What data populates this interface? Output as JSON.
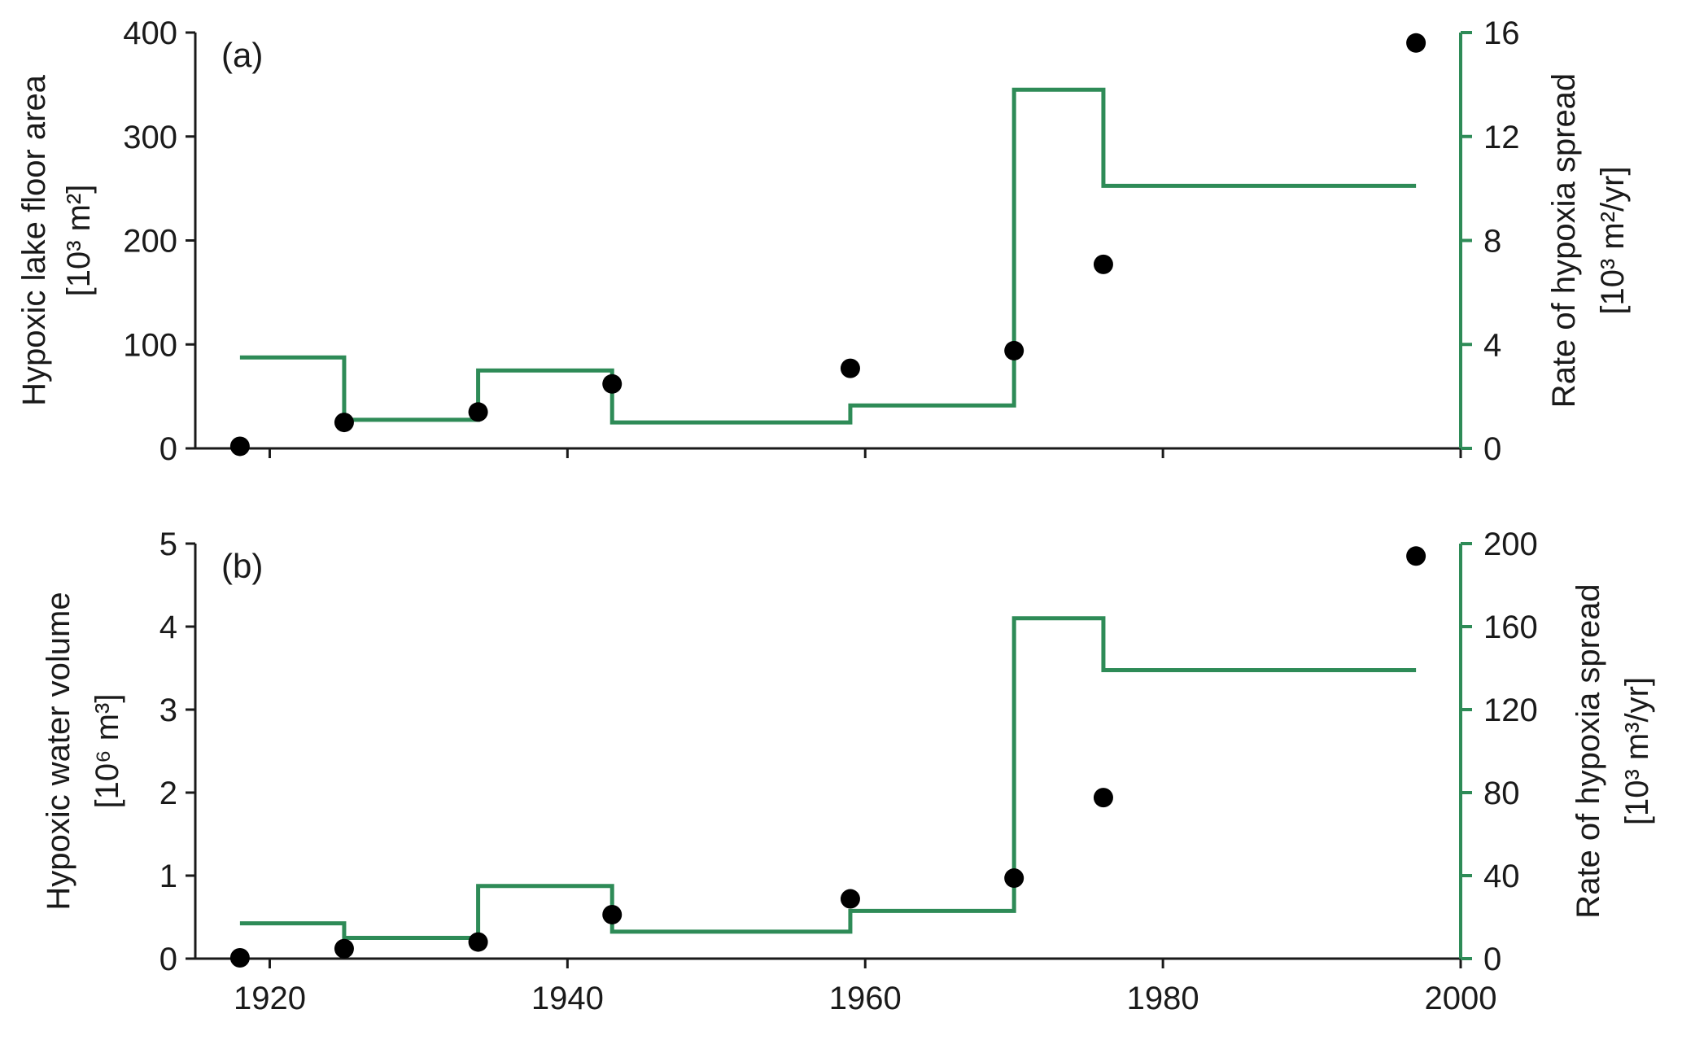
{
  "chart_data": [
    {
      "type": "scatter",
      "panel_label": "(a)",
      "ylabel": [
        "Hypoxic lake floor area",
        "[10³ m²]"
      ],
      "ylabel_right": [
        "Rate of hypoxia spread",
        "[10³ m²/yr]"
      ],
      "xlim": [
        1915,
        2000
      ],
      "xticks": [
        1920,
        1940,
        1960,
        1980,
        2000
      ],
      "xtick_labels_shown": false,
      "ylim": [
        0,
        400
      ],
      "yticks": [
        0,
        100,
        200,
        300,
        400
      ],
      "ylim_right": [
        0,
        16
      ],
      "yticks_right": [
        0,
        4,
        8,
        12,
        16
      ],
      "points": {
        "x": [
          1918,
          1925,
          1934,
          1943,
          1959,
          1970,
          1976,
          1997
        ],
        "y": [
          2,
          25,
          35,
          62,
          77,
          94,
          177,
          390
        ]
      },
      "rate_steps": [
        {
          "x0": 1918,
          "x1": 1925,
          "rate": 3.5
        },
        {
          "x0": 1925,
          "x1": 1934,
          "rate": 1.1
        },
        {
          "x0": 1934,
          "x1": 1943,
          "rate": 3.0
        },
        {
          "x0": 1943,
          "x1": 1959,
          "rate": 1.0
        },
        {
          "x0": 1959,
          "x1": 1970,
          "rate": 1.65
        },
        {
          "x0": 1970,
          "x1": 1976,
          "rate": 13.8
        },
        {
          "x0": 1976,
          "x1": 1997,
          "rate": 10.1
        }
      ],
      "grid": false,
      "colors": {
        "points": "#000000",
        "rate": "#2e8b57",
        "axes": "#1a1a1a"
      }
    },
    {
      "type": "scatter",
      "panel_label": "(b)",
      "ylabel": [
        "Hypoxic water volume",
        "[10⁶ m³]"
      ],
      "ylabel_right": [
        "Rate of hypoxia spread",
        "[10³ m³/yr]"
      ],
      "xlim": [
        1915,
        2000
      ],
      "xticks": [
        1920,
        1940,
        1960,
        1980,
        2000
      ],
      "xtick_labels_shown": true,
      "ylim": [
        0,
        5
      ],
      "yticks": [
        0,
        1,
        2,
        3,
        4,
        5
      ],
      "ylim_right": [
        0,
        200
      ],
      "yticks_right": [
        0,
        40,
        80,
        120,
        160,
        200
      ],
      "points": {
        "x": [
          1918,
          1925,
          1934,
          1943,
          1959,
          1970,
          1976,
          1997
        ],
        "y": [
          0.01,
          0.12,
          0.2,
          0.53,
          0.72,
          0.97,
          1.94,
          4.85
        ]
      },
      "rate_steps": [
        {
          "x0": 1918,
          "x1": 1925,
          "rate": 17
        },
        {
          "x0": 1925,
          "x1": 1934,
          "rate": 10
        },
        {
          "x0": 1934,
          "x1": 1943,
          "rate": 35
        },
        {
          "x0": 1943,
          "x1": 1959,
          "rate": 13
        },
        {
          "x0": 1959,
          "x1": 1970,
          "rate": 23
        },
        {
          "x0": 1970,
          "x1": 1976,
          "rate": 164
        },
        {
          "x0": 1976,
          "x1": 1997,
          "rate": 139
        }
      ],
      "grid": false,
      "colors": {
        "points": "#000000",
        "rate": "#2e8b57",
        "axes": "#1a1a1a"
      }
    }
  ]
}
